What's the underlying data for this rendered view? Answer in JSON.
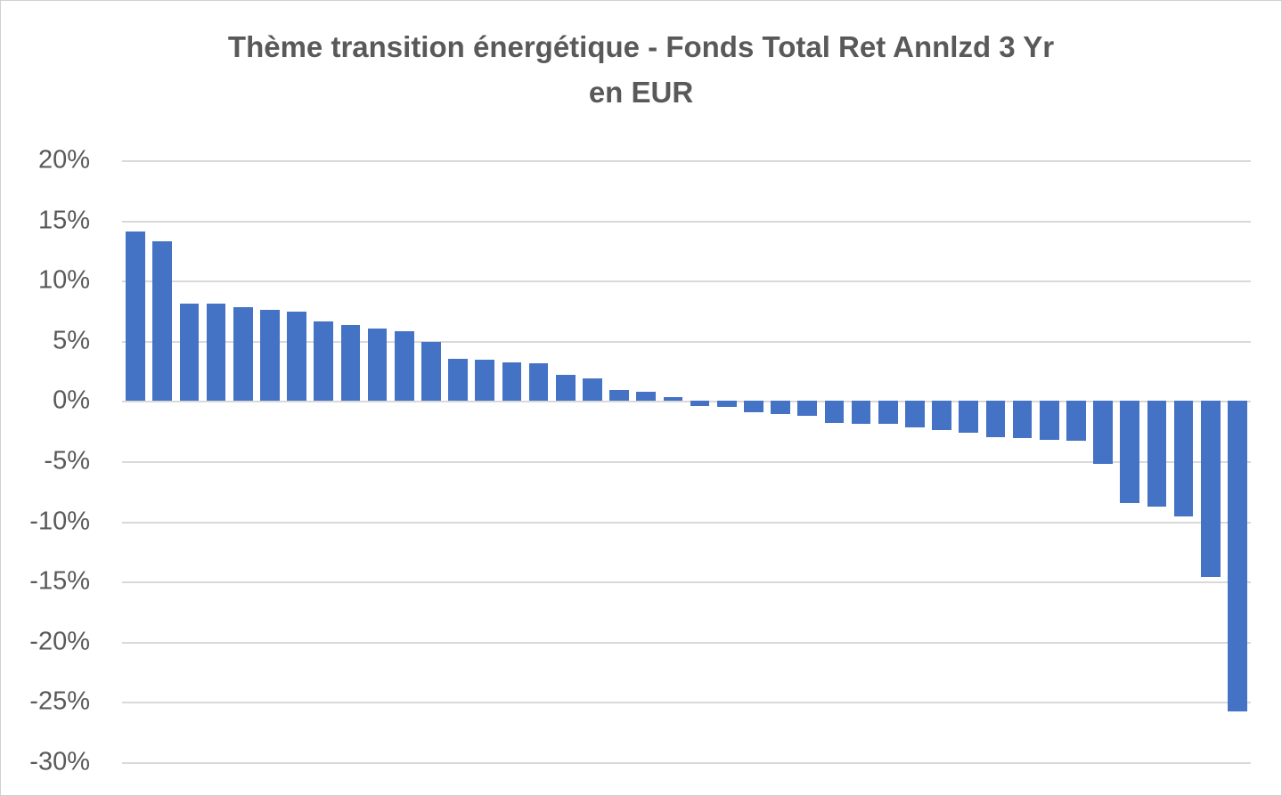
{
  "chart_data": {
    "type": "bar",
    "title": "Thème transition énergétique - Fonds Total Ret Annlzd 3 Yr en EUR",
    "title_lines": {
      "line1": "Thème transition énergétique - Fonds Total Ret Annlzd 3 Yr",
      "line2": "en EUR"
    },
    "xlabel": "",
    "ylabel": "",
    "ylim": [
      -30,
      20
    ],
    "ytick_step": 5,
    "ytick_labels": [
      "20%",
      "15%",
      "10%",
      "5%",
      "0%",
      "-5%",
      "-10%",
      "-15%",
      "-20%",
      "-25%",
      "-30%"
    ],
    "grid": true,
    "legend": "none",
    "x_categories_visible": false,
    "bar_color": "#4472C4",
    "gridline_color": "#d9d9d9",
    "text_color": "#595959",
    "values_pct": [
      14.1,
      13.3,
      8.1,
      8.1,
      7.8,
      7.6,
      7.4,
      6.6,
      6.3,
      6.0,
      5.8,
      4.9,
      3.5,
      3.4,
      3.2,
      3.1,
      2.2,
      1.9,
      0.9,
      0.75,
      0.3,
      -0.4,
      -0.5,
      -0.9,
      -1.1,
      -1.2,
      -1.8,
      -1.9,
      -1.9,
      -2.2,
      -2.4,
      -2.6,
      -3.0,
      -3.1,
      -3.2,
      -3.3,
      -5.2,
      -8.5,
      -8.8,
      -9.6,
      -14.6,
      -25.8
    ]
  }
}
